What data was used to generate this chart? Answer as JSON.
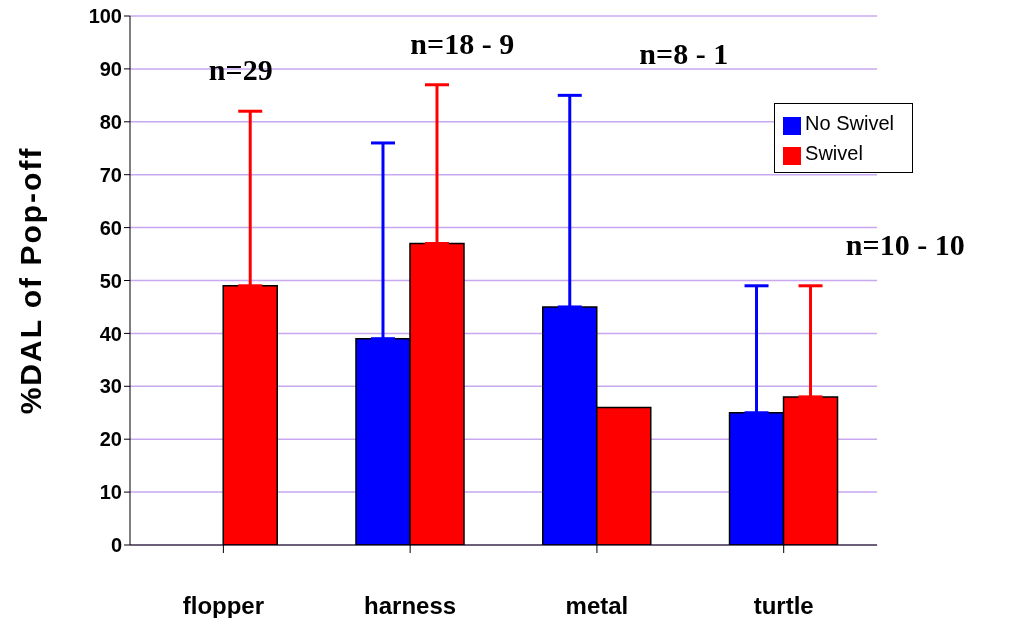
{
  "chart_data": {
    "type": "bar",
    "ylabel": "%DAL of Pop-off",
    "categories": [
      "flopper",
      "harness",
      "metal",
      "turtle"
    ],
    "series": [
      {
        "name": "No Swivel",
        "color": "#0000ff",
        "values": [
          null,
          39,
          45,
          25
        ],
        "errors": [
          null,
          [
            39,
            76
          ],
          [
            45,
            85
          ],
          [
            25,
            49
          ]
        ]
      },
      {
        "name": "Swivel",
        "color": "#ff0000",
        "values": [
          49,
          57,
          26,
          28
        ],
        "errors": [
          [
            49,
            82
          ],
          [
            57,
            87
          ],
          null,
          [
            28,
            49
          ]
        ]
      }
    ],
    "ylim": [
      0,
      100
    ],
    "yticks": [
      0,
      10,
      20,
      30,
      40,
      50,
      60,
      70,
      80,
      90,
      100
    ],
    "grid": "y",
    "legend": "top right",
    "annotations": [
      "n=29",
      "n=18 - 9",
      "n=8 - 1",
      "n=10 - 10"
    ]
  }
}
